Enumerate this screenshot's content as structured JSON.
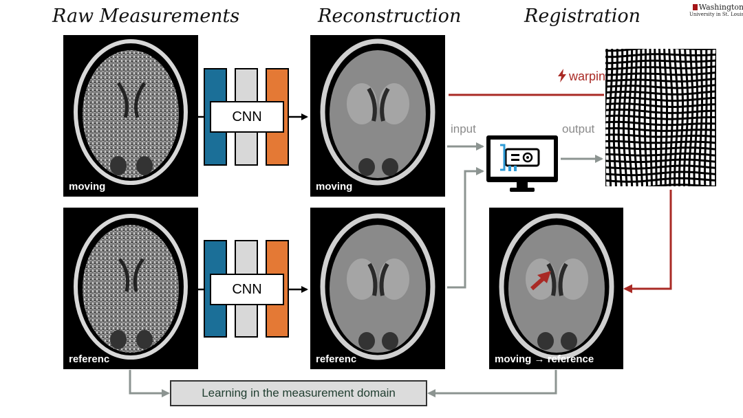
{
  "headings": {
    "raw": "Raw Measurements",
    "reconstruction": "Reconstruction",
    "registration": "Registration"
  },
  "logo": {
    "line1": "Washington",
    "line2": "University in St. Louis"
  },
  "panels": {
    "raw_moving": "moving",
    "raw_reference": "referenc",
    "recon_moving": "moving",
    "recon_reference": "referenc",
    "registered": "moving",
    "registered_target": "reference"
  },
  "cnn": {
    "top": "CNN",
    "bottom": "CNN"
  },
  "labels": {
    "input": "input",
    "output": "output",
    "warping": "warping"
  },
  "learning": "Learning in the measurement domain",
  "colors": {
    "blue": "#1b6f98",
    "gray": "#d8d8d8",
    "orange": "#e47935",
    "red": "#a92a25",
    "arrow_gray": "#8c9491"
  },
  "icons": {
    "warp": "lightning-bolt-icon",
    "network": "monitor-gpu-icon"
  }
}
